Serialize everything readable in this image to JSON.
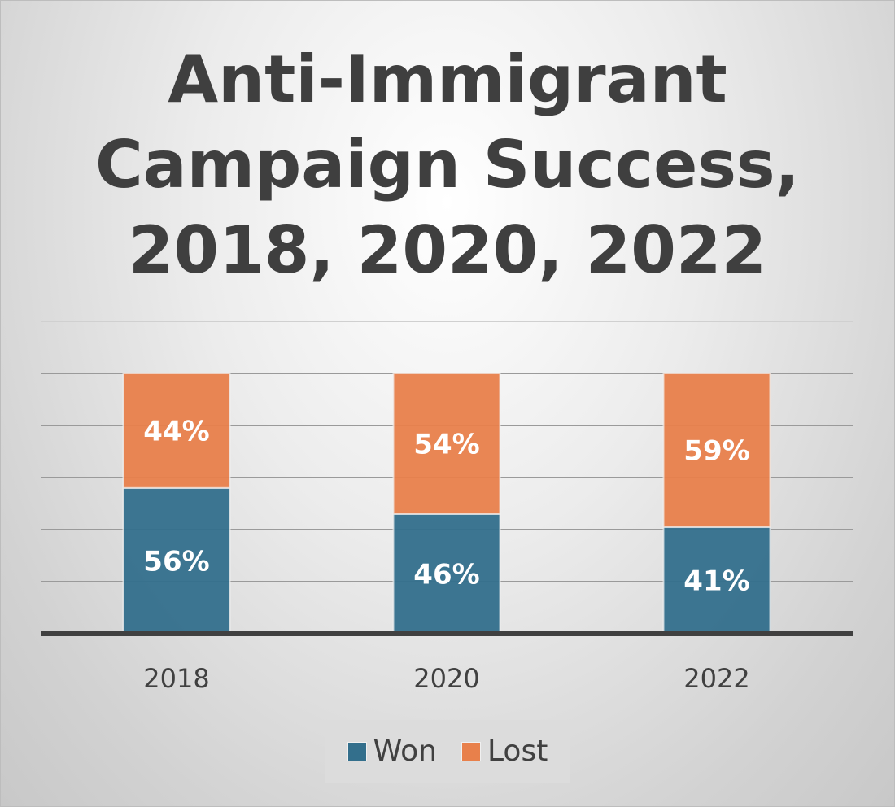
{
  "chart_data": {
    "type": "bar",
    "stacked": true,
    "title_lines": [
      "Anti-Immigrant",
      "Campaign Success,",
      "2018, 2020, 2022"
    ],
    "categories": [
      "2018",
      "2020",
      "2022"
    ],
    "series": [
      {
        "name": "Won",
        "values": [
          56,
          46,
          41
        ],
        "labels": [
          "56%",
          "46%",
          "41%"
        ],
        "color": "#336f8c"
      },
      {
        "name": "Lost",
        "values": [
          44,
          54,
          59
        ],
        "labels": [
          "44%",
          "54%",
          "59%"
        ],
        "color": "#e8804b"
      }
    ],
    "xlabel": "",
    "ylabel": "",
    "ylim": [
      0,
      120
    ],
    "grid_step": 20,
    "grid": true,
    "legend_position": "bottom"
  }
}
